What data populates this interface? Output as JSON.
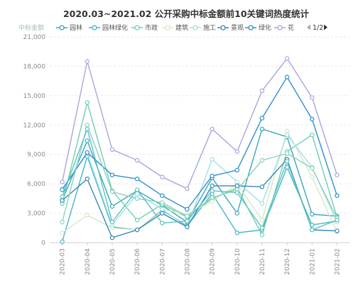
{
  "chart_data": {
    "type": "line",
    "title": "2020.03~2021.02 公开采购中标金额前10关键词热度统计",
    "ylabel": "中标金额",
    "xlabel": "",
    "ylim": [
      0,
      21000
    ],
    "yticks": [
      0,
      3000,
      6000,
      9000,
      12000,
      15000,
      18000,
      21000
    ],
    "ytick_labels": [
      "0",
      "3,000",
      "6,000",
      "9,000",
      "12,000",
      "15,000",
      "18,000",
      "21,000"
    ],
    "grid": true,
    "legend_position": "top",
    "legend_page": "1/2",
    "categories": [
      "2020-03",
      "2020-04",
      "2020-05",
      "2020-06",
      "2020-07",
      "2020-08",
      "2020-09",
      "2020-10",
      "2020-11",
      "2020-12",
      "2021-01",
      "2021-02"
    ],
    "series": [
      {
        "name": "园林",
        "color": "#3aa7b7",
        "values": [
          4300,
          10400,
          3700,
          5300,
          3800,
          2100,
          6600,
          3000,
          11600,
          10800,
          2900,
          2700
        ]
      },
      {
        "name": "园林绿化",
        "color": "#45b4cf",
        "values": [
          100,
          8800,
          1600,
          1300,
          3300,
          1700,
          5000,
          1000,
          1300,
          7700,
          1800,
          2200
        ]
      },
      {
        "name": "市政",
        "color": "#6fcfb0",
        "values": [
          4000,
          14300,
          5300,
          2300,
          3900,
          2600,
          4500,
          5600,
          800,
          9300,
          11000,
          2600
        ]
      },
      {
        "name": "建筑",
        "color": "#d6e8c4",
        "values": [
          1000,
          2800,
          1500,
          1300,
          3400,
          2900,
          4200,
          6000,
          2300,
          11400,
          6700,
          1100
        ]
      },
      {
        "name": "施工",
        "color": "#a3e0e6",
        "values": [
          5500,
          9100,
          1800,
          5000,
          3400,
          1600,
          8500,
          6200,
          4000,
          11000,
          7700,
          2100
        ]
      },
      {
        "name": "景观",
        "color": "#3a86b4",
        "values": [
          4300,
          6500,
          500,
          1300,
          3000,
          1600,
          5800,
          5800,
          5700,
          8500,
          1300,
          1200
        ]
      },
      {
        "name": "绿化",
        "color": "#2f8ecf",
        "values": [
          5400,
          9200,
          6900,
          6500,
          4800,
          3400,
          6800,
          7400,
          12700,
          16900,
          12600,
          4800
        ]
      },
      {
        "name": "花",
        "color": "#a9a5de",
        "values": [
          6200,
          18500,
          9500,
          8400,
          6700,
          5500,
          11600,
          9300,
          15500,
          18800,
          14800,
          6900
        ]
      },
      {
        "name": "",
        "color": "#8ed0c0",
        "values": [
          2100,
          12000,
          5200,
          4500,
          4100,
          2700,
          4600,
          5400,
          8400,
          9100,
          7600,
          2500
        ]
      },
      {
        "name": "",
        "color": "#5cc2bf",
        "values": [
          4700,
          11600,
          2100,
          5400,
          2000,
          2200,
          5300,
          5100,
          1500,
          8300,
          1300,
          2300
        ]
      }
    ]
  }
}
